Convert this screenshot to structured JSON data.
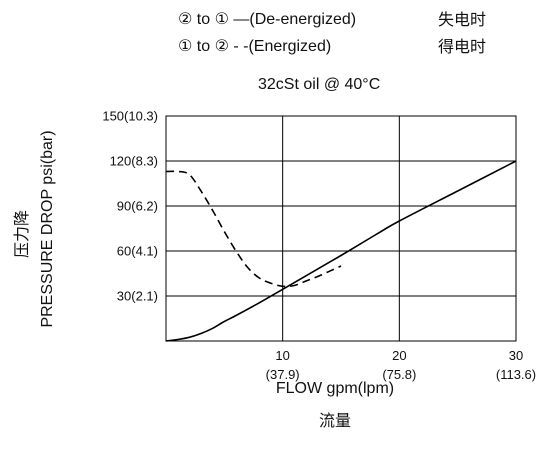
{
  "legend": [
    {
      "symbol": "②",
      "mid": " to ",
      "symbol2": "①",
      "line_glyph": " —",
      "label": "(De-energized)",
      "cn": "失电时",
      "style": "solid"
    },
    {
      "symbol": "①",
      "mid": " to ",
      "symbol2": "②",
      "line_glyph": " - -",
      "label": "(Energized)",
      "cn": "得电时",
      "style": "dashed"
    }
  ],
  "condition": "32cSt oil @ 40°C",
  "chart_data": {
    "type": "line",
    "xlabel": "FLOW gpm(lpm)",
    "xlabel_cn": "流量",
    "ylabel": "PRESSURE DROP psi(bar)",
    "ylabel_cn": "压力降",
    "xlim": [
      0,
      30
    ],
    "ylim": [
      0,
      150
    ],
    "x_ticks": [
      {
        "value": 10,
        "label": "10",
        "sublabel": "(37.9)"
      },
      {
        "value": 20,
        "label": "20",
        "sublabel": "(75.8)"
      },
      {
        "value": 30,
        "label": "30",
        "sublabel": "(113.6)"
      }
    ],
    "y_ticks": [
      {
        "value": 30,
        "label": "30(2.1)"
      },
      {
        "value": 60,
        "label": "60(4.1)"
      },
      {
        "value": 90,
        "label": "90(6.2)"
      },
      {
        "value": 120,
        "label": "120(8.3)"
      },
      {
        "value": 150,
        "label": "150(10.3)"
      }
    ],
    "grid": true,
    "series": [
      {
        "name": "(De-energized)",
        "style": "solid",
        "x": [
          0,
          1,
          2,
          3,
          4,
          5,
          6,
          8,
          10,
          12,
          15,
          18,
          20,
          25,
          30
        ],
        "y": [
          0,
          1,
          2.5,
          5,
          8.5,
          13,
          17,
          25.5,
          34.5,
          43.5,
          57,
          71,
          80,
          100,
          120
        ]
      },
      {
        "name": "(Energized)",
        "style": "dashed",
        "x": [
          0,
          1,
          2,
          3,
          4,
          5,
          6,
          7,
          8,
          9,
          10,
          11,
          12,
          13,
          14,
          15
        ],
        "y": [
          113,
          113,
          111,
          100,
          87,
          73,
          60,
          49,
          42,
          38.5,
          36.5,
          37,
          40,
          43,
          46.5,
          50
        ]
      }
    ]
  }
}
